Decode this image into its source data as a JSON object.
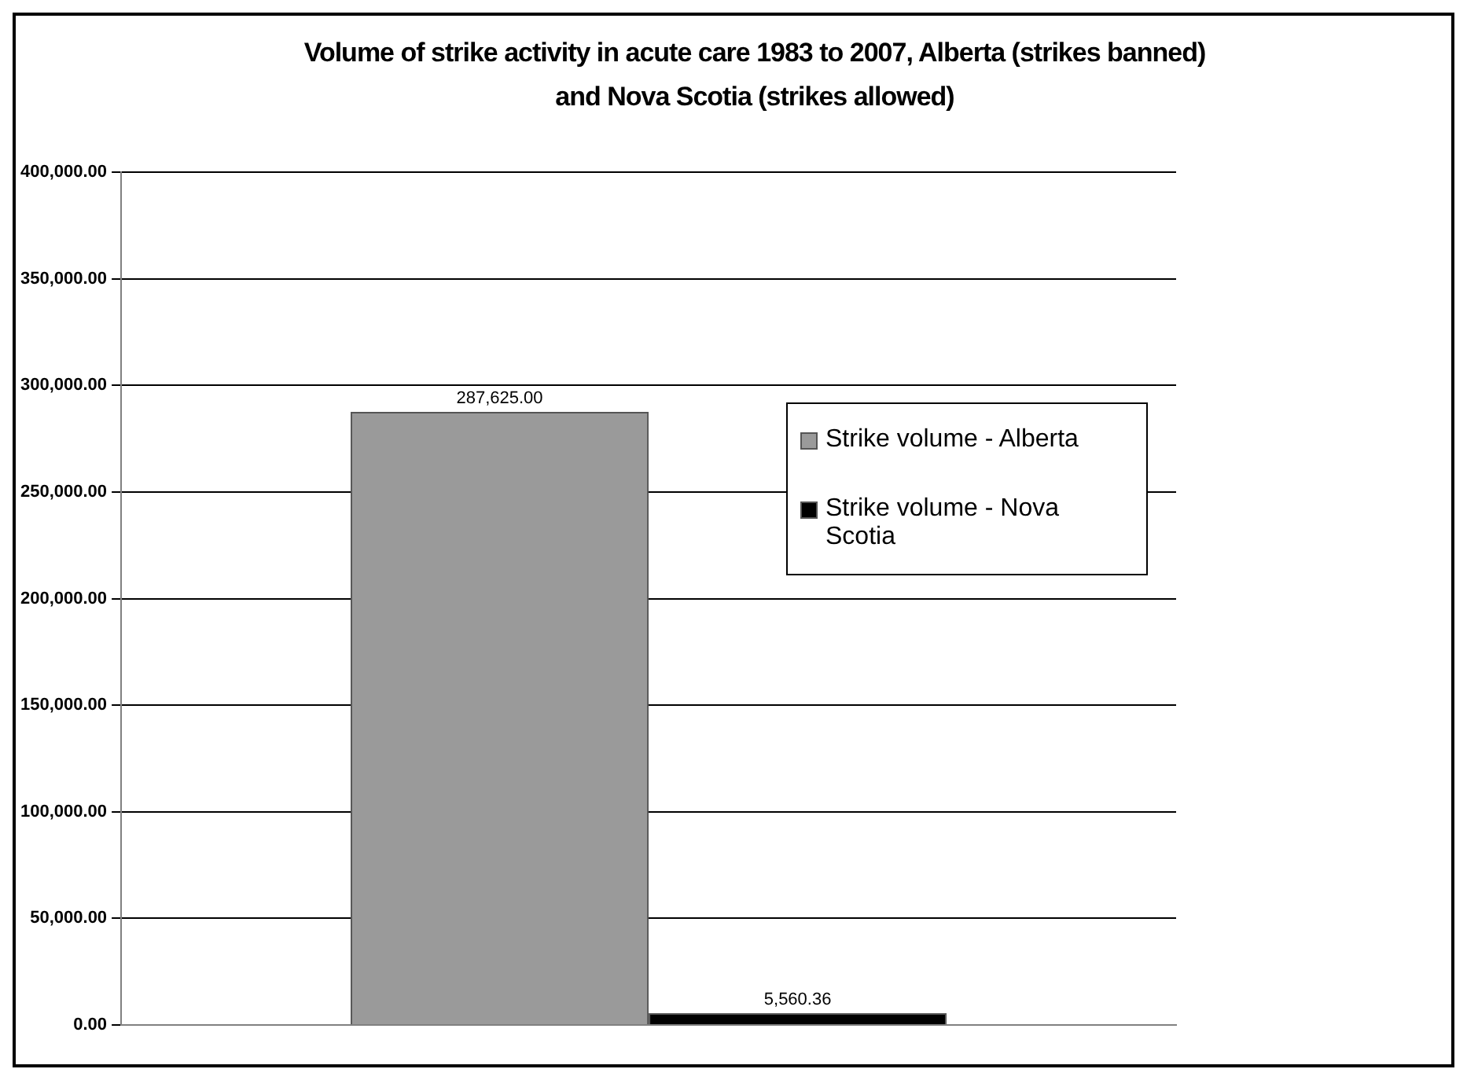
{
  "chart_data": {
    "type": "bar",
    "title": "Volume of strike activity in acute care 1983 to 2007, Alberta (strikes banned) and Nova Scotia (strikes allowed)",
    "categories": [
      null
    ],
    "series": [
      {
        "name": "Strike volume - Alberta",
        "color": "#9a9a9a",
        "values": [
          287625
        ],
        "value_labels": [
          "287,625.00"
        ]
      },
      {
        "name": "Strike volume - Nova Scotia",
        "color": "#000000",
        "values": [
          5560.36
        ],
        "value_labels": [
          "5,560.36"
        ]
      }
    ],
    "ylim": [
      0,
      400000
    ],
    "yticks": [
      {
        "value": 0,
        "label": "0.00"
      },
      {
        "value": 50000,
        "label": "50,000.00"
      },
      {
        "value": 100000,
        "label": "100,000.00"
      },
      {
        "value": 150000,
        "label": "150,000.00"
      },
      {
        "value": 200000,
        "label": "200,000.00"
      },
      {
        "value": 250000,
        "label": "250,000.00"
      },
      {
        "value": 300000,
        "label": "300,000.00"
      },
      {
        "value": 350000,
        "label": "350,000.00"
      },
      {
        "value": 400000,
        "label": "400,000.00"
      }
    ],
    "grid": "y",
    "legend": "right"
  }
}
